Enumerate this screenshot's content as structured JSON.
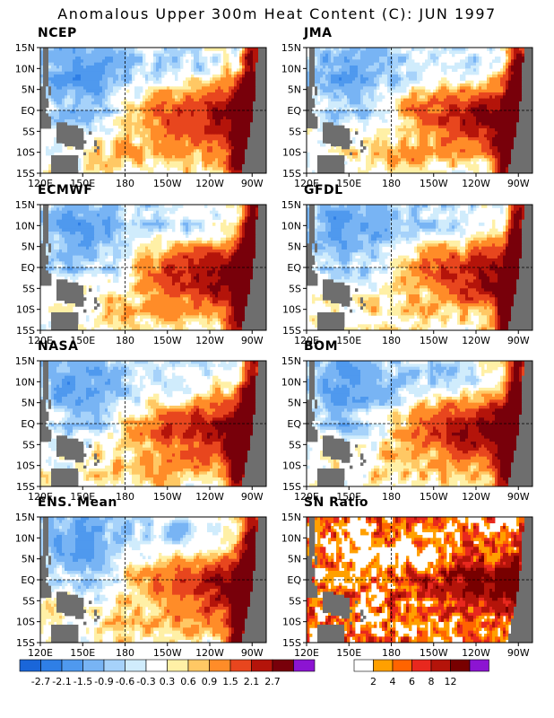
{
  "title": "Anomalous Upper 300m Heat Content (C): JUN 1997",
  "lat_ticks": [
    "15N",
    "10N",
    "5N",
    "EQ",
    "5S",
    "10S",
    "15S"
  ],
  "lon_ticks": [
    "120E",
    "150E",
    "180",
    "150W",
    "120W",
    "90W"
  ],
  "panels": [
    {
      "name": "NCEP",
      "kind": "anom",
      "variant": 0
    },
    {
      "name": "JMA",
      "kind": "anom",
      "variant": 1
    },
    {
      "name": "ECMWF",
      "kind": "anom",
      "variant": 2
    },
    {
      "name": "GFDL",
      "kind": "anom",
      "variant": 3
    },
    {
      "name": "NASA",
      "kind": "anom",
      "variant": 4
    },
    {
      "name": "BOM",
      "kind": "anom",
      "variant": 5
    },
    {
      "name": "ENS. Mean",
      "kind": "anom",
      "variant": 6
    },
    {
      "name": "SN Ratio",
      "kind": "snr",
      "variant": 7
    }
  ],
  "colorbar_anom": {
    "labels": [
      "-2.7",
      "-2.1",
      "-1.5",
      "-0.9",
      "-0.6",
      "-0.3",
      "0.3",
      "0.6",
      "0.9",
      "1.5",
      "2.1",
      "2.7"
    ],
    "colors": [
      "#1a66d9",
      "#2f7fe6",
      "#4f99ee",
      "#78b4f4",
      "#a6d2fa",
      "#d0ecfc",
      "#ffffff",
      "#fff0a6",
      "#ffc864",
      "#ff8c28",
      "#e8461e",
      "#b4140a",
      "#78000a",
      "#8c14d2"
    ]
  },
  "colorbar_snr": {
    "labels": [
      "2",
      "4",
      "6",
      "8",
      "12"
    ],
    "colors": [
      "#ffffff",
      "#ffa000",
      "#ff6400",
      "#e8281e",
      "#b4140a",
      "#780000",
      "#8c14d2"
    ]
  },
  "chart_data": {
    "type": "heatmap",
    "title": "Anomalous Upper 300m Heat Content (C): JUN 1997",
    "x_range": [
      "120E",
      "80W"
    ],
    "y_range": [
      "15S",
      "15N"
    ],
    "anomaly_levels": [
      -2.7,
      -2.1,
      -1.5,
      -0.9,
      -0.6,
      -0.3,
      0.3,
      0.6,
      0.9,
      1.5,
      2.1,
      2.7
    ],
    "sn_ratio_levels": [
      2,
      4,
      6,
      8,
      12
    ],
    "panels": [
      "NCEP",
      "JMA",
      "ECMWF",
      "GFDL",
      "NASA",
      "BOM",
      "ENS. Mean",
      "SN Ratio"
    ]
  }
}
